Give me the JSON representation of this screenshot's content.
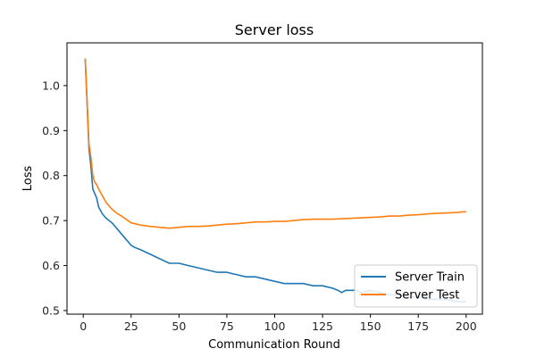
{
  "chart_data": {
    "type": "line",
    "title": "Server loss",
    "xlabel": "Communication Round",
    "ylabel": "Loss",
    "xlim": [
      -8.5,
      208.5
    ],
    "ylim": [
      0.492,
      1.095
    ],
    "xticks": [
      0,
      25,
      50,
      75,
      100,
      125,
      150,
      175,
      200
    ],
    "yticks": [
      0.5,
      0.6,
      0.7,
      0.8,
      0.9,
      1.0
    ],
    "ytick_labels": [
      "0.5",
      "0.6",
      "0.7",
      "0.8",
      "0.9",
      "1.0"
    ],
    "grid": false,
    "legend_position": "lower-right",
    "series": [
      {
        "name": "Server Train",
        "color": "#1f77b4",
        "x": [
          1,
          2,
          3,
          4,
          5,
          6,
          7,
          8,
          10,
          12,
          15,
          18,
          20,
          23,
          25,
          27,
          30,
          35,
          40,
          45,
          50,
          55,
          60,
          65,
          70,
          75,
          80,
          85,
          90,
          95,
          100,
          105,
          110,
          115,
          120,
          125,
          130,
          133,
          135,
          137,
          140,
          143,
          145,
          150,
          155,
          160,
          165,
          170,
          175,
          180,
          185,
          190,
          195,
          200
        ],
        "y": [
          1.06,
          0.96,
          0.86,
          0.82,
          0.77,
          0.76,
          0.75,
          0.73,
          0.715,
          0.705,
          0.695,
          0.68,
          0.67,
          0.655,
          0.645,
          0.64,
          0.635,
          0.625,
          0.615,
          0.605,
          0.605,
          0.6,
          0.595,
          0.59,
          0.585,
          0.585,
          0.58,
          0.575,
          0.575,
          0.57,
          0.565,
          0.56,
          0.56,
          0.56,
          0.555,
          0.555,
          0.55,
          0.545,
          0.54,
          0.545,
          0.545,
          0.545,
          0.54,
          0.545,
          0.54,
          0.535,
          0.535,
          0.53,
          0.53,
          0.525,
          0.525,
          0.525,
          0.52,
          0.52
        ]
      },
      {
        "name": "Server Test",
        "color": "#ff7f0e",
        "x": [
          1,
          2,
          3,
          4,
          5,
          6,
          7,
          8,
          10,
          12,
          15,
          18,
          20,
          25,
          30,
          35,
          40,
          45,
          50,
          55,
          60,
          65,
          70,
          75,
          80,
          85,
          90,
          95,
          100,
          105,
          110,
          115,
          120,
          125,
          130,
          135,
          140,
          145,
          150,
          155,
          160,
          165,
          170,
          175,
          180,
          185,
          190,
          195,
          200
        ],
        "y": [
          1.06,
          0.965,
          0.87,
          0.84,
          0.8,
          0.785,
          0.78,
          0.77,
          0.755,
          0.74,
          0.725,
          0.715,
          0.71,
          0.695,
          0.69,
          0.687,
          0.685,
          0.683,
          0.685,
          0.687,
          0.687,
          0.688,
          0.69,
          0.692,
          0.693,
          0.695,
          0.697,
          0.697,
          0.698,
          0.698,
          0.7,
          0.702,
          0.703,
          0.703,
          0.703,
          0.704,
          0.705,
          0.706,
          0.707,
          0.708,
          0.71,
          0.71,
          0.712,
          0.713,
          0.715,
          0.716,
          0.717,
          0.718,
          0.72
        ]
      }
    ]
  }
}
